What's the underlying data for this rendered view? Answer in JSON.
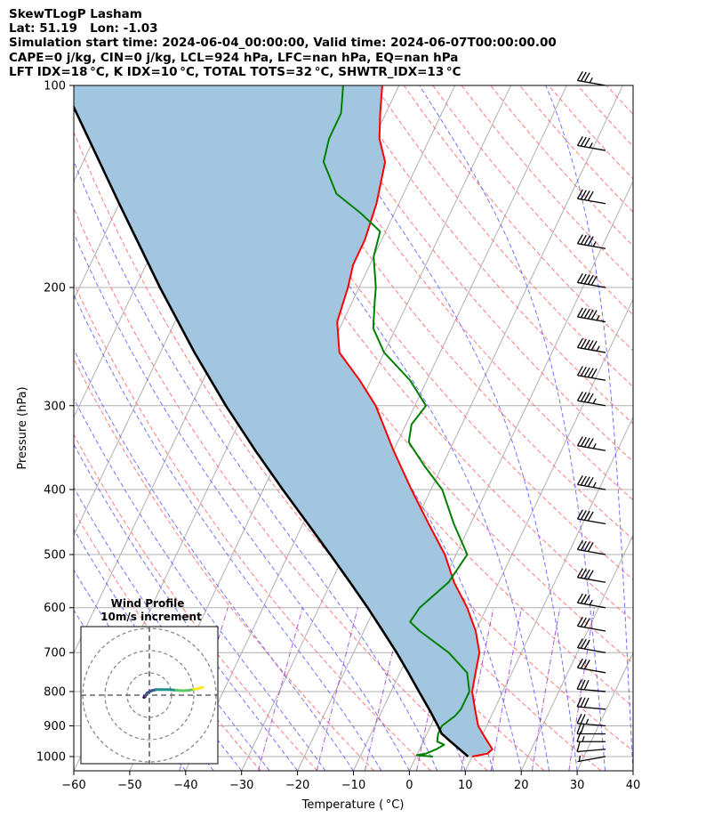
{
  "header": {
    "line1": "SkewTLogP Lasham",
    "line2": "Lat: 51.19   Lon: -1.03",
    "line3": "Simulation start time: 2024-06-04_00:00:00, Valid time: 2024-06-07T00:00:00.00",
    "line4": "CAPE=0 j/kg, CIN=0 j/kg, LCL=924 hPa, LFC=nan hPa, EQ=nan hPa",
    "line5": "LFT IDX=18 °C, K IDX=10 °C, TOTAL TOTS=32 °C, SHWTR_IDX=13 °C"
  },
  "colors": {
    "temperature": "#ff0000",
    "dewpoint": "#008000",
    "parcel": "#000000",
    "cape_fill": "#a3c6e0",
    "dry_adiabat": "#ff6b6b",
    "moist_adiabat": "#5a5aff",
    "mixing_ratio": "#9932cc",
    "isotherm": "#b0b0b0"
  },
  "chart_data": {
    "type": "line",
    "subtype": "skew-t log-p",
    "xlabel": "Temperature ( °C)",
    "ylabel": "Pressure (hPa)",
    "xlim": [
      -60,
      40
    ],
    "ylim": [
      1050,
      100
    ],
    "y_scale": "log",
    "xticks": [
      -60,
      -50,
      -40,
      -30,
      -20,
      -10,
      0,
      10,
      20,
      30,
      40
    ],
    "xtick_labels": [
      "−60",
      "−50",
      "−40",
      "−30",
      "−20",
      "−10",
      "0",
      "10",
      "20",
      "30",
      "40"
    ],
    "yticks": [
      1000,
      900,
      800,
      700,
      600,
      500,
      400,
      300,
      200,
      100
    ],
    "grid": true,
    "series": [
      {
        "key": "temperature",
        "p": [
          1000,
          990,
          975,
          950,
          925,
          900,
          850,
          800,
          750,
          700,
          650,
          600,
          550,
          500,
          450,
          400,
          350,
          300,
          275,
          250,
          225,
          200,
          185,
          170,
          150,
          130,
          120,
          110,
          100
        ],
        "t": [
          10,
          12.5,
          13,
          11.5,
          10,
          8.5,
          6.5,
          4.5,
          3.5,
          2.5,
          0,
          -3.5,
          -8,
          -12,
          -17.5,
          -23.5,
          -30,
          -37,
          -42,
          -48,
          -51,
          -52,
          -53,
          -53,
          -54,
          -56,
          -59,
          -61,
          -63
        ]
      },
      {
        "key": "dewpoint",
        "p": [
          1000,
          995,
          990,
          975,
          960,
          950,
          925,
          900,
          870,
          850,
          800,
          750,
          700,
          650,
          630,
          600,
          550,
          500,
          450,
          400,
          370,
          340,
          320,
          300,
          275,
          250,
          230,
          210,
          200,
          180,
          165,
          155,
          145,
          130,
          120,
          110,
          100
        ],
        "t": [
          3,
          0,
          1.5,
          3,
          4,
          2.5,
          2,
          2,
          3.5,
          4,
          4,
          2,
          -3,
          -10,
          -12.5,
          -12,
          -9,
          -8,
          -13,
          -18,
          -23,
          -28,
          -29,
          -28,
          -33,
          -40,
          -44,
          -46,
          -47,
          -50,
          -51,
          -56,
          -62,
          -67,
          -68,
          -68,
          -70
        ]
      },
      {
        "key": "parcel",
        "p": [
          1000,
          950,
          924,
          900,
          850,
          800,
          750,
          700,
          650,
          600,
          550,
          500,
          450,
          400,
          350,
          300,
          250,
          200,
          150,
          100
        ],
        "t": [
          9.3,
          4.9,
          2.6,
          1.3,
          -1.7,
          -5,
          -8.5,
          -12.3,
          -16.6,
          -21.3,
          -26.6,
          -32.5,
          -39.1,
          -46.5,
          -54.7,
          -63.8,
          -73.9,
          -85.6,
          -100,
          -120
        ]
      }
    ],
    "wind_barbs": {
      "p": [
        1000,
        975,
        950,
        925,
        900,
        850,
        800,
        750,
        700,
        650,
        600,
        550,
        500,
        450,
        400,
        350,
        300,
        275,
        250,
        225,
        200,
        175,
        150,
        125,
        100
      ],
      "speed_kt": [
        5,
        10,
        15,
        20,
        25,
        30,
        30,
        30,
        30,
        30,
        35,
        40,
        40,
        40,
        45,
        45,
        45,
        50,
        55,
        55,
        50,
        45,
        40,
        35,
        35
      ],
      "direction_deg": [
        260,
        265,
        270,
        270,
        275,
        275,
        275,
        280,
        280,
        280,
        280,
        280,
        280,
        280,
        280,
        280,
        280,
        280,
        280,
        280,
        280,
        280,
        280,
        280,
        280
      ]
    },
    "hodograph": {
      "title": "Wind Profile",
      "subtitle": "10m/s increment",
      "rings_ms": [
        10,
        20,
        30
      ],
      "u_ms": [
        -2.5,
        -2.2,
        -2,
        -1.8,
        -1,
        1,
        3,
        5,
        9,
        12,
        15,
        18,
        20,
        22,
        24
      ],
      "v_ms": [
        -1,
        -0.5,
        -0.8,
        -0.3,
        1,
        2,
        2.5,
        2.5,
        2.5,
        2.2,
        2,
        2.2,
        2.6,
        3,
        3.5
      ]
    }
  }
}
